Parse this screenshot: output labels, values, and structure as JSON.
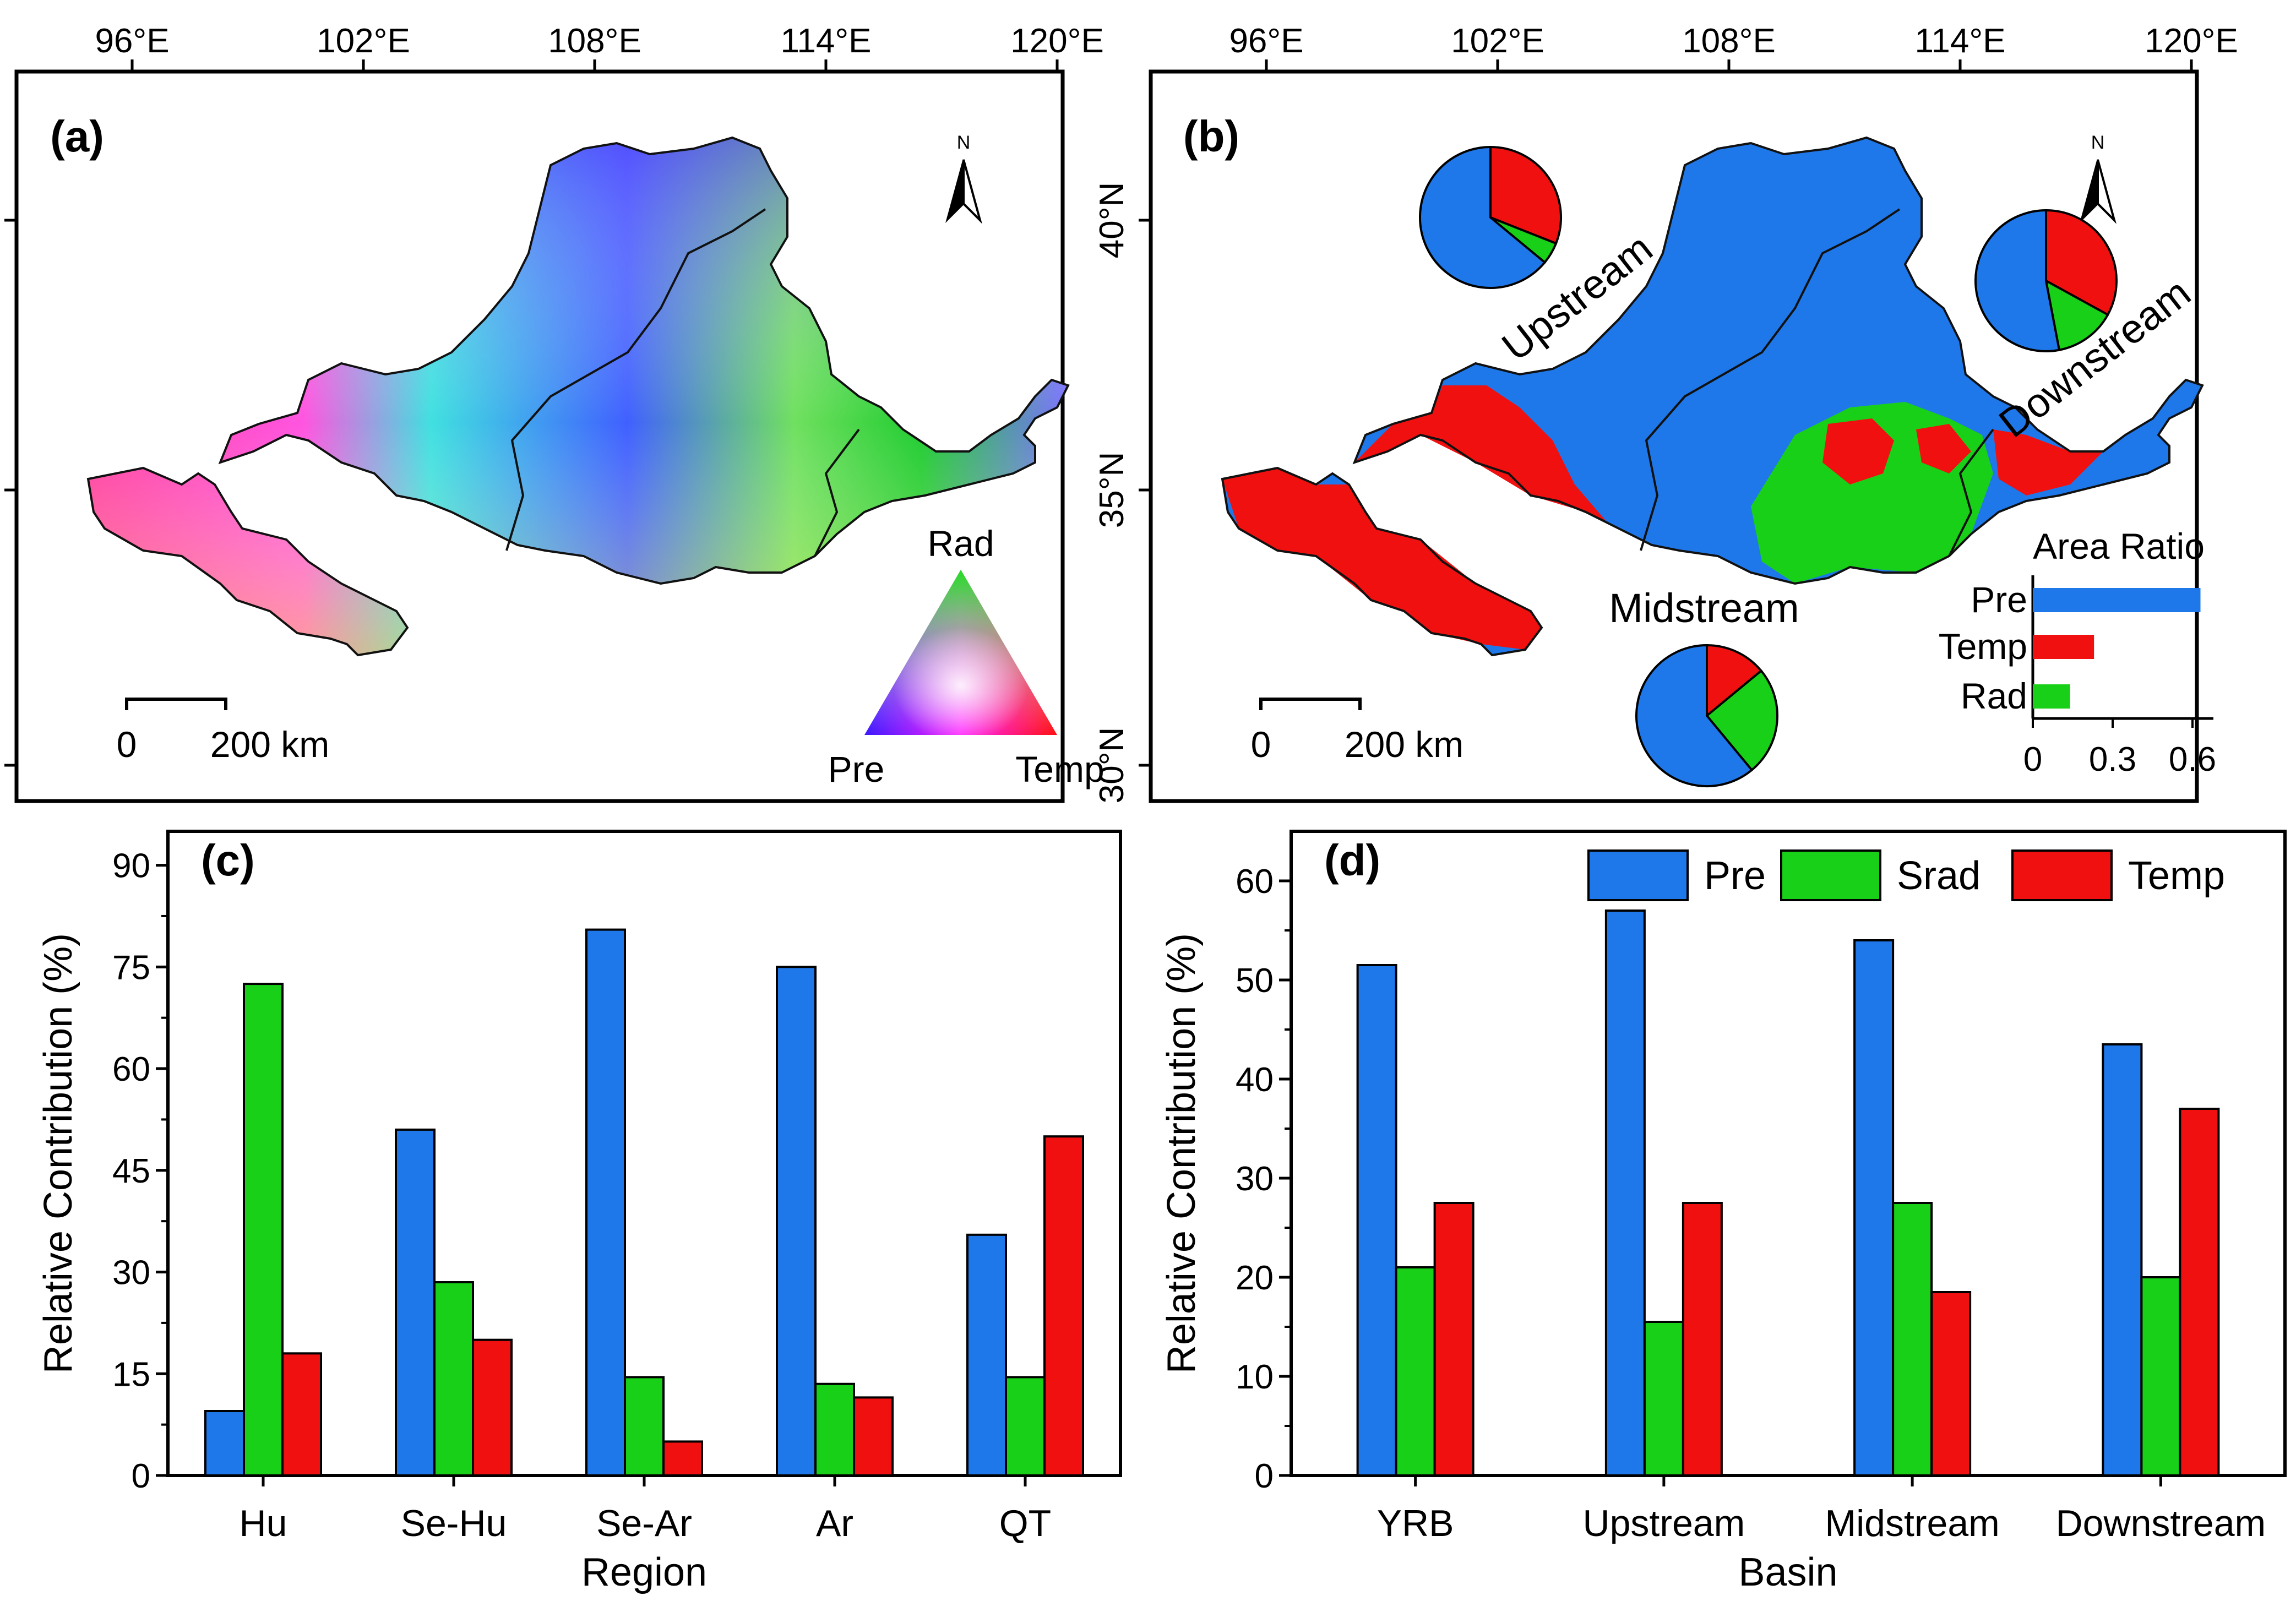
{
  "panels": {
    "a": {
      "label": "(a)",
      "lon_ticks": [
        "96°E",
        "102°E",
        "108°E",
        "114°E",
        "120°E"
      ],
      "lat_ticks": [
        "40°N",
        "35°N",
        "30°N"
      ],
      "north": "N",
      "scale": {
        "zero": "0",
        "value": "200 km"
      },
      "ternary_legend": {
        "top": "Rad",
        "left": "Pre",
        "right": "Temp"
      }
    },
    "b": {
      "label": "(b)",
      "lon_ticks": [
        "96°E",
        "102°E",
        "108°E",
        "114°E",
        "120°E"
      ],
      "lat_ticks": [
        "40°N",
        "35°N",
        "30°N"
      ],
      "north": "N",
      "scale": {
        "zero": "0",
        "value": "200 km"
      },
      "basin_labels": {
        "upstream": "Upstream",
        "midstream": "Midstream",
        "downstream": "Downstream"
      },
      "colors": {
        "pre": "#1f78ea",
        "temp": "#f01010",
        "rad": "#18d018"
      }
    },
    "c": {
      "label": "(c)"
    },
    "d": {
      "label": "(d)"
    }
  },
  "chart_data": [
    {
      "id": "b-pies",
      "type": "pie",
      "series_order": [
        "Pre",
        "Temp",
        "Rad"
      ],
      "pies": [
        {
          "name": "Upstream",
          "values": [
            0.64,
            0.31,
            0.05
          ]
        },
        {
          "name": "Downstream",
          "values": [
            0.53,
            0.33,
            0.14
          ]
        },
        {
          "name": "Midstream",
          "values": [
            0.61,
            0.14,
            0.25
          ]
        }
      ]
    },
    {
      "id": "b-area",
      "type": "bar",
      "orientation": "horizontal",
      "title": "Area Ratio",
      "categories": [
        "Pre",
        "Temp",
        "Rad"
      ],
      "values": [
        0.63,
        0.23,
        0.14
      ],
      "xlim": [
        0,
        0.7
      ],
      "xticks": [
        "0",
        "0.3",
        "0.6"
      ]
    },
    {
      "id": "c",
      "type": "bar",
      "xlabel": "Region",
      "ylabel": "Relative Contribution (%)",
      "ylim": [
        0,
        95
      ],
      "yticks": [
        0,
        15,
        30,
        45,
        60,
        75,
        90
      ],
      "categories": [
        "Hu",
        "Se-Hu",
        "Se-Ar",
        "Ar",
        "QT"
      ],
      "series": [
        {
          "name": "Pre",
          "color": "#1f78ea",
          "values": [
            9.5,
            51,
            80.5,
            75,
            35.5
          ]
        },
        {
          "name": "Srad",
          "color": "#18d018",
          "values": [
            72.5,
            28.5,
            14.5,
            13.5,
            14.5
          ]
        },
        {
          "name": "Temp",
          "color": "#f01010",
          "values": [
            18,
            20,
            5,
            11.5,
            50
          ]
        }
      ]
    },
    {
      "id": "d",
      "type": "bar",
      "xlabel": "Basin",
      "ylabel": "Relative Contribution (%)",
      "ylim": [
        0,
        65
      ],
      "yticks": [
        0,
        10,
        20,
        30,
        40,
        50,
        60
      ],
      "legend": "top-right",
      "categories": [
        "YRB",
        "Upstream",
        "Midstream",
        "Downstream"
      ],
      "series": [
        {
          "name": "Pre",
          "color": "#1f78ea",
          "values": [
            51.5,
            57,
            54,
            43.5
          ]
        },
        {
          "name": "Srad",
          "color": "#18d018",
          "values": [
            21,
            15.5,
            27.5,
            20
          ]
        },
        {
          "name": "Temp",
          "color": "#f01010",
          "values": [
            27.5,
            27.5,
            18.5,
            37
          ]
        }
      ]
    }
  ]
}
